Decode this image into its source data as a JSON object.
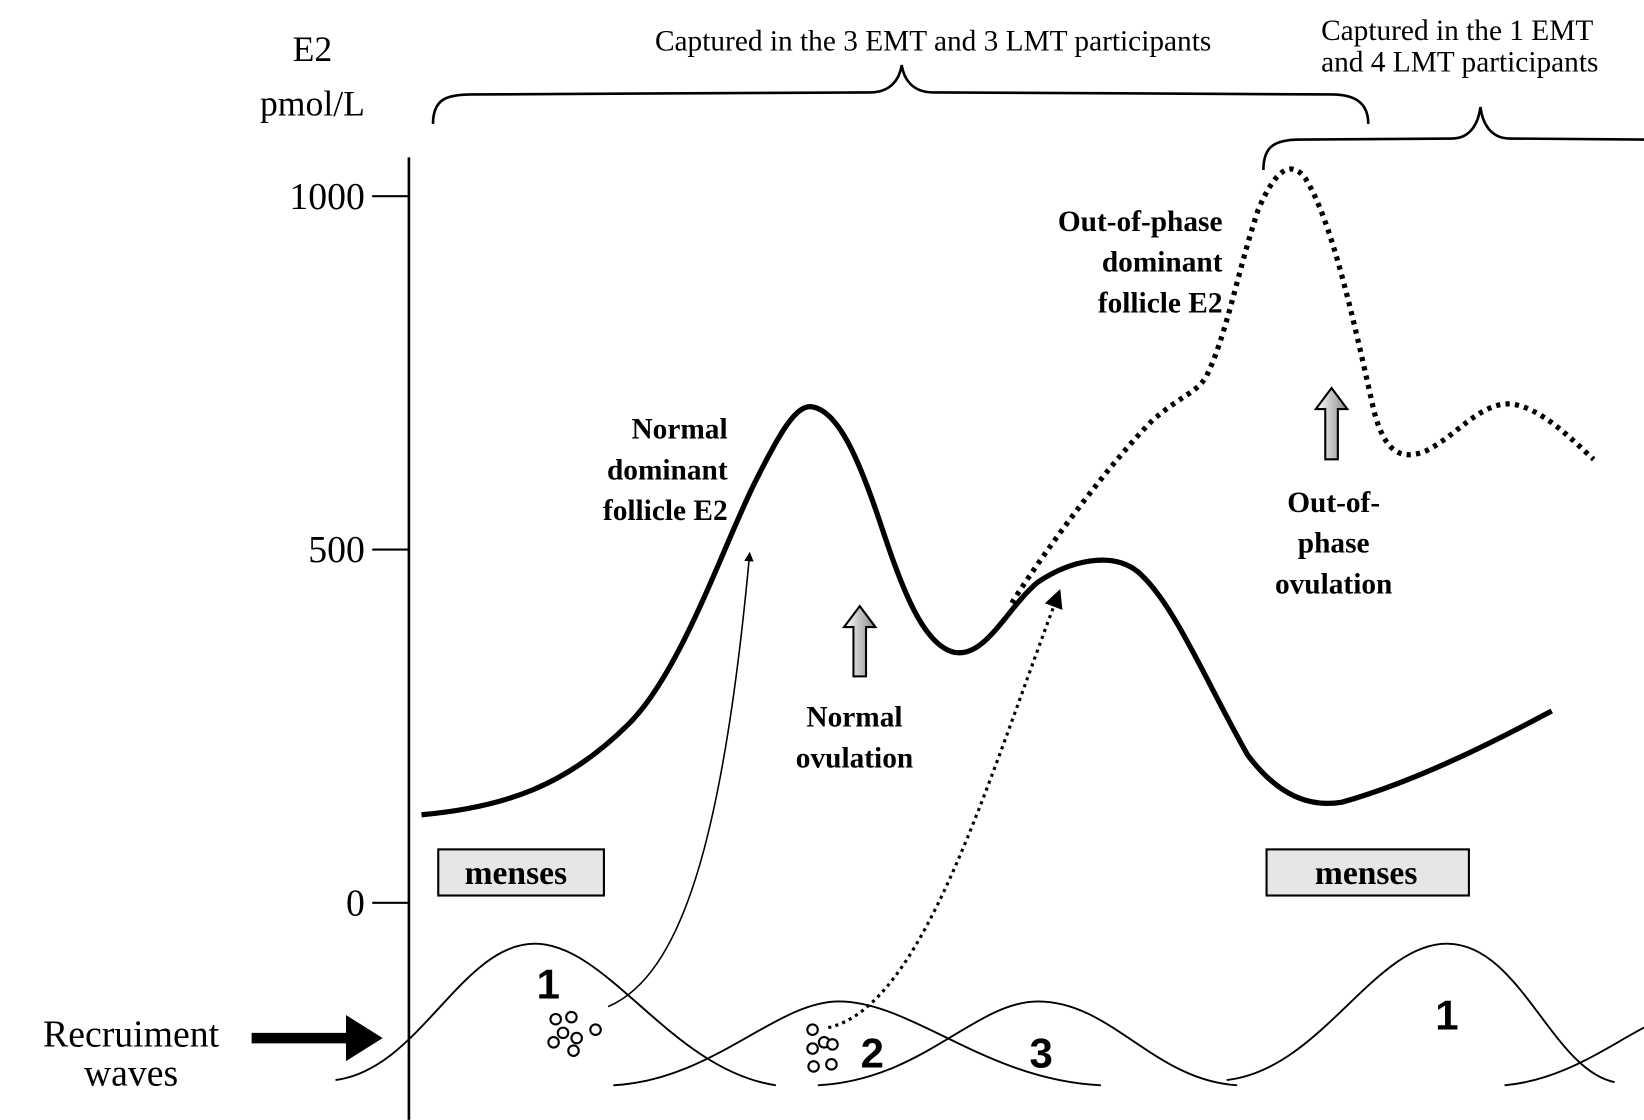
{
  "axis": {
    "title": "E2",
    "unit": "pmol/L",
    "ticks": [
      0,
      500,
      1000
    ]
  },
  "brackets": [
    {
      "lines": [
        "Captured in the 3 EMT and 3 LMT participants"
      ]
    },
    {
      "lines": [
        "Captured in the 1 EMT",
        "and 4 LMT participants"
      ]
    }
  ],
  "labels": {
    "normal_follicle": [
      "Normal",
      "dominant",
      "follicle E2"
    ],
    "out_of_phase_follicle": [
      "Out-of-phase",
      "dominant",
      "follicle E2"
    ],
    "normal_ovulation": [
      "Normal",
      "ovulation"
    ],
    "out_of_phase_ovulation": [
      "Out-of-",
      "phase",
      "ovulation"
    ],
    "menses": [
      "menses",
      "menses"
    ],
    "recruitment": [
      "Recruiment",
      "waves"
    ],
    "waves": [
      "1",
      "2",
      "3",
      "1"
    ]
  }
}
